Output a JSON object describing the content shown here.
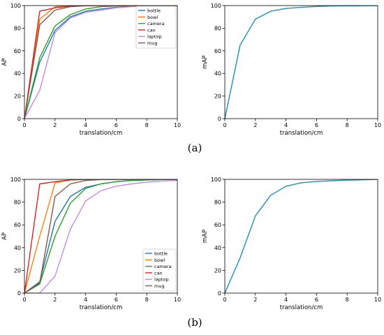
{
  "panel_labels": [
    "(a)",
    "(b)"
  ],
  "chart_data": [
    {
      "type": "line",
      "panel": "(a)",
      "position": "left",
      "xlabel": "translation/cm",
      "ylabel": "AP",
      "xlim": [
        0,
        10
      ],
      "ylim": [
        0,
        100
      ],
      "xticks": [
        0,
        2,
        4,
        6,
        8,
        10
      ],
      "yticks": [
        0,
        20,
        40,
        60,
        80,
        100
      ],
      "grid": false,
      "legend": "top-right",
      "x": [
        0,
        1,
        2,
        3,
        4,
        5,
        6,
        7,
        8,
        9,
        10
      ],
      "series": [
        {
          "name": "bottle",
          "color": "#1f77b4",
          "values": [
            0,
            50,
            78,
            90,
            95,
            97,
            98.5,
            99.3,
            99.7,
            99.9,
            100
          ]
        },
        {
          "name": "bowl",
          "color": "#ff7f0e",
          "values": [
            0,
            88,
            99,
            100,
            100,
            100,
            100,
            100,
            100,
            100,
            100
          ]
        },
        {
          "name": "camera",
          "color": "#2ca02c",
          "values": [
            0,
            54,
            82,
            92,
            97,
            99,
            99.7,
            100,
            100,
            100,
            100
          ]
        },
        {
          "name": "can",
          "color": "#d62728",
          "values": [
            0,
            95,
            98,
            99.5,
            100,
            100,
            100,
            100,
            100,
            100,
            100
          ]
        },
        {
          "name": "laptop",
          "color": "#c38ce0",
          "values": [
            0,
            25,
            76,
            89,
            94,
            96,
            98,
            99,
            99.6,
            100,
            100
          ]
        },
        {
          "name": "mug",
          "color": "#8c564b",
          "values": [
            0,
            83,
            96,
            99,
            99.8,
            100,
            100,
            100,
            100,
            100,
            100
          ]
        }
      ]
    },
    {
      "type": "line",
      "panel": "(a)",
      "position": "right",
      "xlabel": "translation/cm",
      "ylabel": "mAP",
      "xlim": [
        0,
        10
      ],
      "ylim": [
        0,
        100
      ],
      "xticks": [
        0,
        2,
        4,
        6,
        8,
        10
      ],
      "yticks": [
        0,
        20,
        40,
        60,
        80,
        100
      ],
      "grid": false,
      "x": [
        0,
        1,
        2,
        3,
        4,
        5,
        6,
        7,
        8,
        9,
        10
      ],
      "series": [
        {
          "color": "#1f8fb4",
          "values": [
            0,
            65,
            88,
            95,
            97.5,
            98.5,
            99.2,
            99.6,
            99.8,
            99.9,
            100
          ]
        }
      ]
    },
    {
      "type": "line",
      "panel": "(b)",
      "position": "left",
      "xlabel": "translation/cm",
      "ylabel": "AP",
      "xlim": [
        0,
        10
      ],
      "ylim": [
        0,
        100
      ],
      "xticks": [
        0,
        2,
        4,
        6,
        8,
        10
      ],
      "yticks": [
        0,
        20,
        40,
        60,
        80,
        100
      ],
      "grid": false,
      "legend": "bottom-right",
      "x": [
        0,
        1,
        2,
        3,
        4,
        5,
        6,
        7,
        8,
        9,
        10
      ],
      "series": [
        {
          "name": "bottle",
          "color": "#1f77b4",
          "values": [
            0,
            10,
            63,
            85,
            93,
            96,
            98,
            99,
            99.5,
            99.8,
            100
          ]
        },
        {
          "name": "bowl",
          "color": "#ff7f0e",
          "values": [
            0,
            50,
            97,
            99.5,
            100,
            100,
            100,
            100,
            100,
            100,
            100
          ]
        },
        {
          "name": "camera",
          "color": "#2ca02c",
          "values": [
            0,
            8,
            50,
            79,
            92,
            96,
            98,
            99,
            99.5,
            99.8,
            100
          ]
        },
        {
          "name": "can",
          "color": "#d62728",
          "values": [
            0,
            96,
            98,
            99.5,
            100,
            100,
            100,
            100,
            100,
            100,
            100
          ]
        },
        {
          "name": "laptop",
          "color": "#c38ce0",
          "values": [
            0,
            0,
            15,
            56,
            81,
            90,
            94,
            96,
            97.5,
            98.5,
            99
          ]
        },
        {
          "name": "mug",
          "color": "#8c564b",
          "values": [
            0,
            9,
            85,
            96,
            99,
            99.8,
            100,
            100,
            100,
            100,
            100
          ]
        }
      ]
    },
    {
      "type": "line",
      "panel": "(b)",
      "position": "right",
      "xlabel": "translation/cm",
      "ylabel": "mAP",
      "xlim": [
        0,
        10
      ],
      "ylim": [
        0,
        100
      ],
      "xticks": [
        0,
        2,
        4,
        6,
        8,
        10
      ],
      "yticks": [
        0,
        20,
        40,
        60,
        80,
        100
      ],
      "grid": false,
      "x": [
        0,
        1,
        2,
        3,
        4,
        5,
        6,
        7,
        8,
        9,
        10
      ],
      "series": [
        {
          "color": "#1f8fb4",
          "values": [
            0,
            31,
            68,
            86,
            94,
            97,
            98.2,
            98.8,
            99.3,
            99.6,
            100
          ]
        }
      ]
    }
  ]
}
